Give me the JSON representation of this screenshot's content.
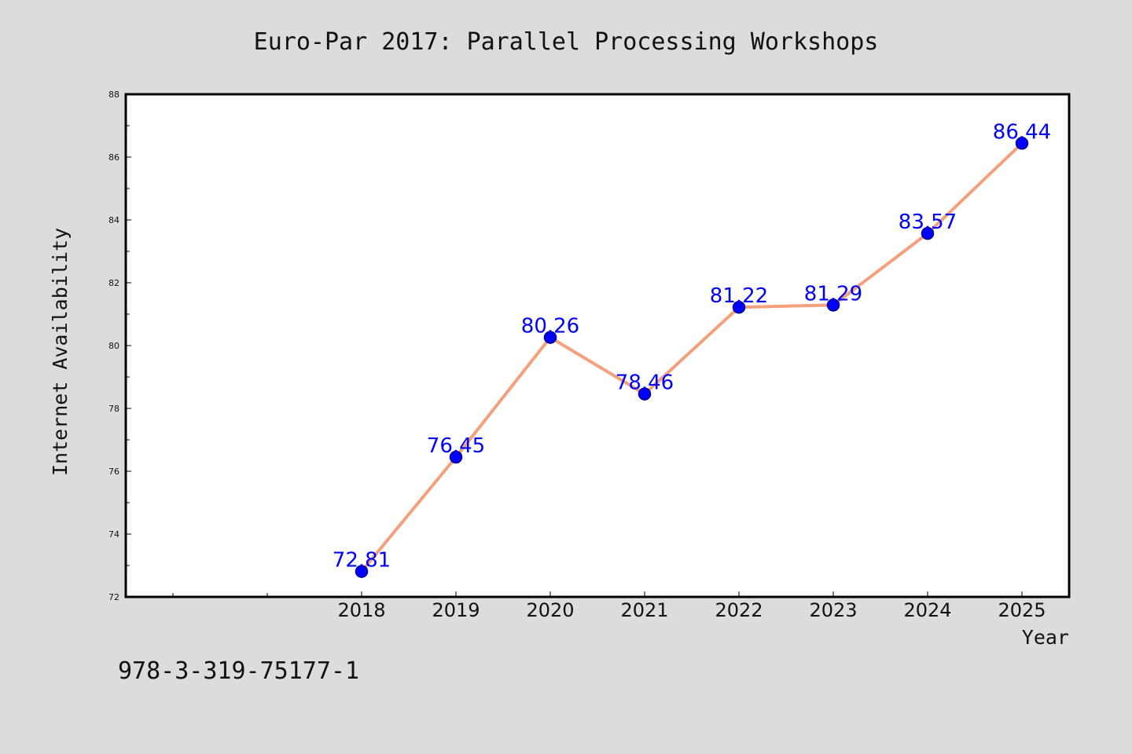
{
  "colors": {
    "background": "#dcdcdc",
    "plot_background": "#ffffff",
    "line": "#f4a07c",
    "marker": "#0000ff",
    "marker_edge": "#00008b",
    "data_label": "#0000ff",
    "frame": "#000000"
  },
  "footnote": "978-3-319-75177-1",
  "chart_data": {
    "type": "line",
    "title": "Euro-Par 2017: Parallel Processing Workshops",
    "xlabel": "Year",
    "ylabel": "Internet Availability",
    "x": [
      2018,
      2019,
      2020,
      2021,
      2022,
      2023,
      2024,
      2025
    ],
    "xlim": [
      2015.5,
      2025.5
    ],
    "xticks": [
      2018,
      2019,
      2020,
      2021,
      2022,
      2023,
      2024,
      2025
    ],
    "xtick_labels": [
      "2018",
      "2019",
      "2020",
      "2021",
      "2022",
      "2023",
      "2024",
      "2025"
    ],
    "ylim": [
      72,
      88
    ],
    "yticks": [
      72,
      74,
      76,
      78,
      80,
      82,
      84,
      86,
      88
    ],
    "ytick_labels": [
      "72",
      "74",
      "76",
      "78",
      "80",
      "82",
      "84",
      "86",
      "88"
    ],
    "series": [
      {
        "values": [
          72.81,
          76.45,
          80.26,
          78.46,
          81.22,
          81.29,
          83.57,
          86.44
        ],
        "data_labels": [
          "72.81",
          "76.45",
          "80.26",
          "78.46",
          "81.22",
          "81.29",
          "83.57",
          "86.44"
        ],
        "marker": "circle"
      }
    ],
    "grid": false,
    "legend": "none"
  }
}
